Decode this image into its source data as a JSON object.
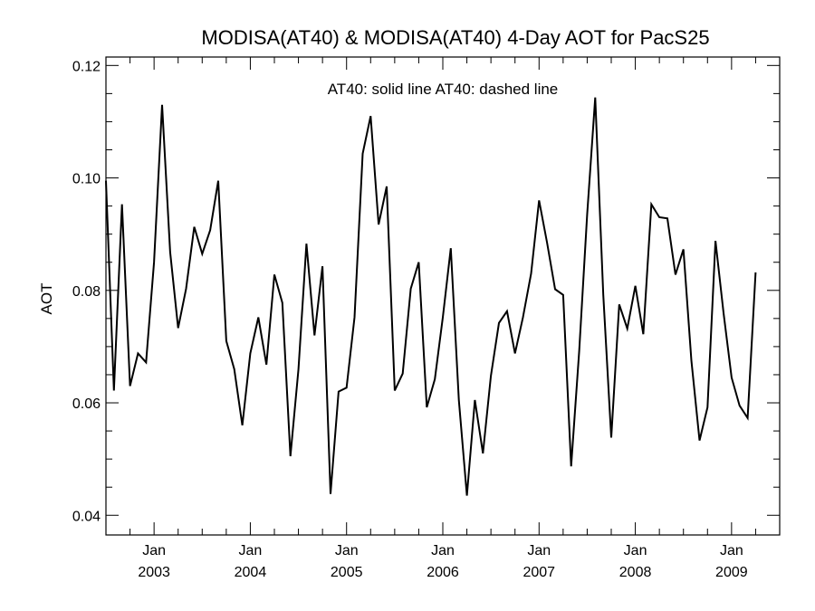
{
  "chart_data": {
    "type": "line",
    "title": "MODISA(AT40) & MODISA(AT40) 4-Day AOT for PacS25",
    "ylabel": "AOT",
    "xlabel": "",
    "annotation": "AT40: solid line   AT40: dashed line",
    "ylim": [
      0.0365,
      0.1215
    ],
    "xlim": [
      2002.5,
      2009.5
    ],
    "yticks": [
      0.04,
      0.06,
      0.08,
      0.1,
      0.12
    ],
    "ytick_labels": [
      "0.04",
      "0.06",
      "0.08",
      "0.10",
      "0.12"
    ],
    "xticks": [
      {
        "x": 2003.0,
        "month": "Jan",
        "year": "2003"
      },
      {
        "x": 2004.0,
        "month": "Jan",
        "year": "2004"
      },
      {
        "x": 2005.0,
        "month": "Jan",
        "year": "2005"
      },
      {
        "x": 2006.0,
        "month": "Jan",
        "year": "2006"
      },
      {
        "x": 2007.0,
        "month": "Jan",
        "year": "2007"
      },
      {
        "x": 2008.0,
        "month": "Jan",
        "year": "2008"
      },
      {
        "x": 2009.0,
        "month": "Jan",
        "year": "2009"
      }
    ],
    "series": [
      {
        "style": "solid",
        "color": "#000000",
        "points": [
          [
            2002.5,
            0.0995
          ],
          [
            2002.583,
            0.0622
          ],
          [
            2002.667,
            0.0953
          ],
          [
            2002.75,
            0.063
          ],
          [
            2002.833,
            0.0688
          ],
          [
            2002.917,
            0.0672
          ],
          [
            2003.0,
            0.085
          ],
          [
            2003.083,
            0.113
          ],
          [
            2003.167,
            0.0868
          ],
          [
            2003.25,
            0.0733
          ],
          [
            2003.333,
            0.0803
          ],
          [
            2003.417,
            0.0913
          ],
          [
            2003.5,
            0.0865
          ],
          [
            2003.583,
            0.0907
          ],
          [
            2003.667,
            0.0995
          ],
          [
            2003.75,
            0.071
          ],
          [
            2003.833,
            0.066
          ],
          [
            2003.917,
            0.056
          ],
          [
            2004.0,
            0.0688
          ],
          [
            2004.083,
            0.0752
          ],
          [
            2004.167,
            0.0668
          ],
          [
            2004.25,
            0.0828
          ],
          [
            2004.333,
            0.0778
          ],
          [
            2004.417,
            0.0505
          ],
          [
            2004.5,
            0.066
          ],
          [
            2004.583,
            0.0883
          ],
          [
            2004.667,
            0.072
          ],
          [
            2004.75,
            0.0843
          ],
          [
            2004.833,
            0.0438
          ],
          [
            2004.917,
            0.062
          ],
          [
            2005.0,
            0.0627
          ],
          [
            2005.083,
            0.0752
          ],
          [
            2005.167,
            0.1043
          ],
          [
            2005.25,
            0.111
          ],
          [
            2005.333,
            0.0917
          ],
          [
            2005.417,
            0.0985
          ],
          [
            2005.5,
            0.0622
          ],
          [
            2005.583,
            0.0652
          ],
          [
            2005.667,
            0.0803
          ],
          [
            2005.75,
            0.085
          ],
          [
            2005.833,
            0.0592
          ],
          [
            2005.917,
            0.0642
          ],
          [
            2006.0,
            0.0752
          ],
          [
            2006.083,
            0.0875
          ],
          [
            2006.167,
            0.0605
          ],
          [
            2006.25,
            0.0435
          ],
          [
            2006.333,
            0.0605
          ],
          [
            2006.417,
            0.051
          ],
          [
            2006.5,
            0.0648
          ],
          [
            2006.583,
            0.0742
          ],
          [
            2006.667,
            0.0763
          ],
          [
            2006.75,
            0.0688
          ],
          [
            2006.833,
            0.0752
          ],
          [
            2006.917,
            0.083
          ],
          [
            2007.0,
            0.096
          ],
          [
            2007.083,
            0.0885
          ],
          [
            2007.167,
            0.0802
          ],
          [
            2007.25,
            0.0792
          ],
          [
            2007.333,
            0.0487
          ],
          [
            2007.417,
            0.0692
          ],
          [
            2007.5,
            0.0935
          ],
          [
            2007.583,
            0.1143
          ],
          [
            2007.667,
            0.0792
          ],
          [
            2007.75,
            0.0538
          ],
          [
            2007.833,
            0.0775
          ],
          [
            2007.917,
            0.0732
          ],
          [
            2008.0,
            0.0808
          ],
          [
            2008.083,
            0.0722
          ],
          [
            2008.167,
            0.0953
          ],
          [
            2008.25,
            0.093
          ],
          [
            2008.333,
            0.0928
          ],
          [
            2008.417,
            0.0828
          ],
          [
            2008.5,
            0.0873
          ],
          [
            2008.583,
            0.0675
          ],
          [
            2008.667,
            0.0533
          ],
          [
            2008.75,
            0.0592
          ],
          [
            2008.833,
            0.0888
          ],
          [
            2008.917,
            0.076
          ],
          [
            2009.0,
            0.0645
          ],
          [
            2009.083,
            0.0595
          ],
          [
            2009.167,
            0.0573
          ],
          [
            2009.25,
            0.0832
          ]
        ]
      }
    ],
    "grid": false
  }
}
